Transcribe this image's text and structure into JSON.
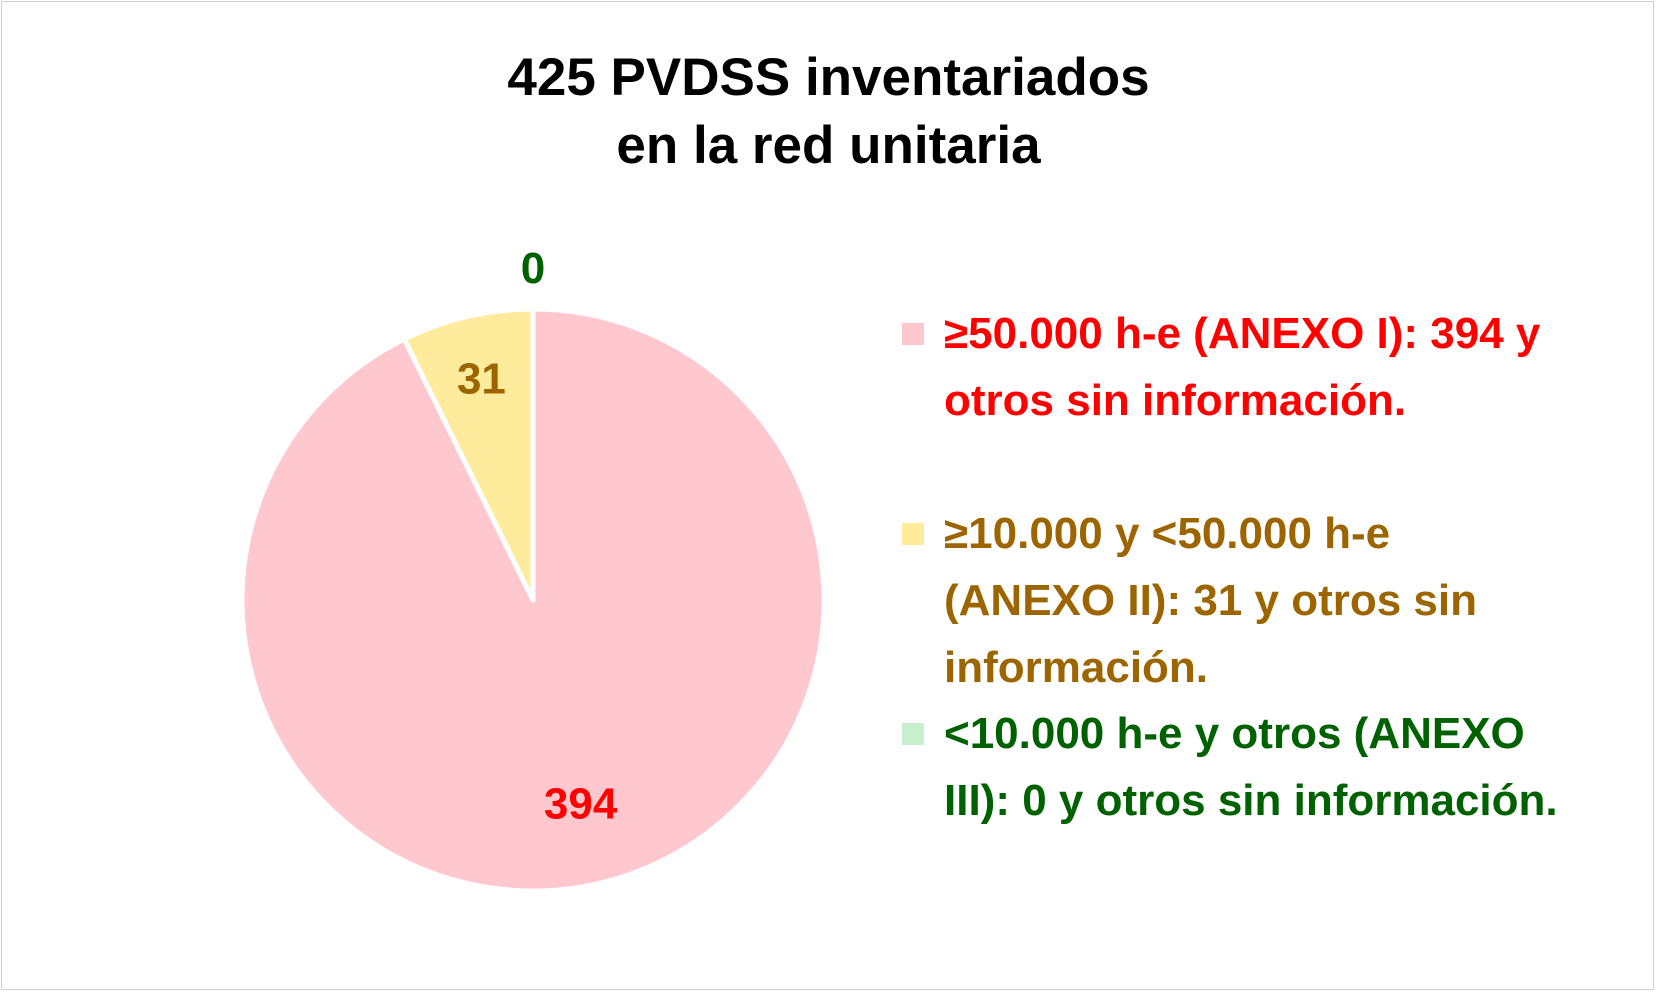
{
  "chart_data": {
    "type": "pie",
    "title_lines": [
      "425 PVDSS inventariados",
      "en la red unitaria"
    ],
    "start_angle_deg": 0,
    "direction": "clockwise",
    "series": [
      {
        "label": "≥50.000 h-e (ANEXO I): 394 y otros sin información.",
        "value": 394,
        "data_label": "394",
        "fill": "#ffc7ce",
        "text_color": "#ff0000"
      },
      {
        "label": "≥10.000 y <50.000 h-e (ANEXO  II): 31 y otros sin información.",
        "value": 31,
        "data_label": "31",
        "fill": "#ffeb9c",
        "text_color": "#9c6500"
      },
      {
        "label": "<10.000 h-e y otros (ANEXO III): 0 y otros sin información.",
        "value": 0,
        "data_label": "0",
        "fill": "#c6efce",
        "text_color": "#006100"
      }
    ],
    "legend_position": "right"
  },
  "legend": {
    "items": [
      {
        "line1": "≥50.000 h-e (ANEXO I): 394 y",
        "line2": "otros sin información.",
        "line3": ""
      },
      {
        "line1": "≥10.000 y <50.000 h-e",
        "line2": "(ANEXO  II): 31 y otros sin",
        "line3": "información."
      },
      {
        "line1": "<10.000 h-e y otros (ANEXO",
        "line2": "III): 0 y otros sin información.",
        "line3": ""
      }
    ]
  }
}
